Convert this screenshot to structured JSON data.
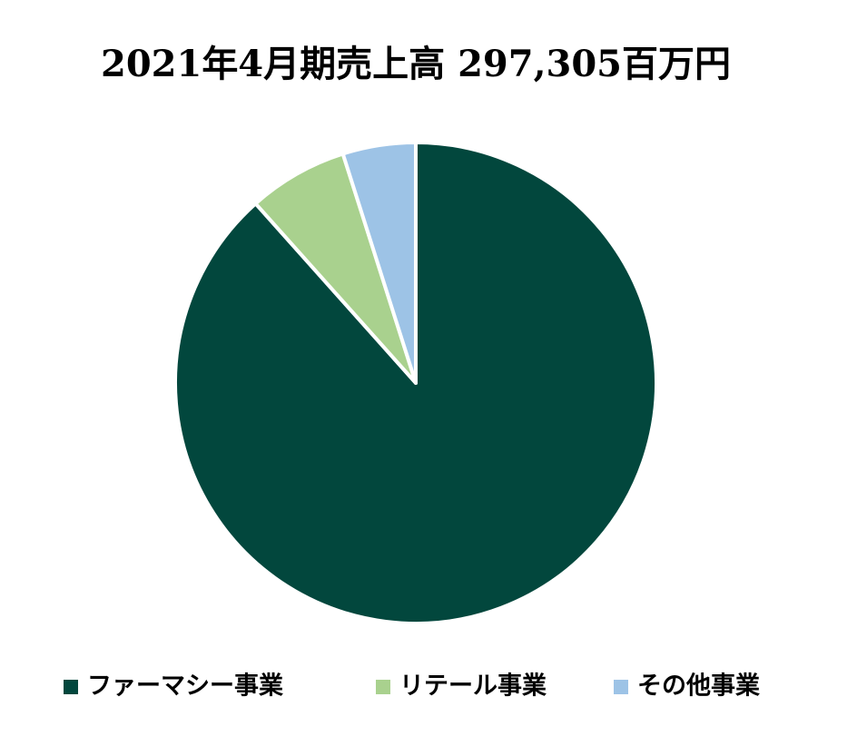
{
  "chart_data": {
    "type": "pie",
    "title": "2021年4月期売上高  297,305百万円",
    "categories": [
      "ファーマシー事業",
      "リテール事業",
      "その他事業"
    ],
    "values": [
      88.4,
      6.7,
      4.9
    ],
    "colors": [
      "#02473d",
      "#a9d18e",
      "#9dc3e6"
    ],
    "legend": "bottom"
  }
}
